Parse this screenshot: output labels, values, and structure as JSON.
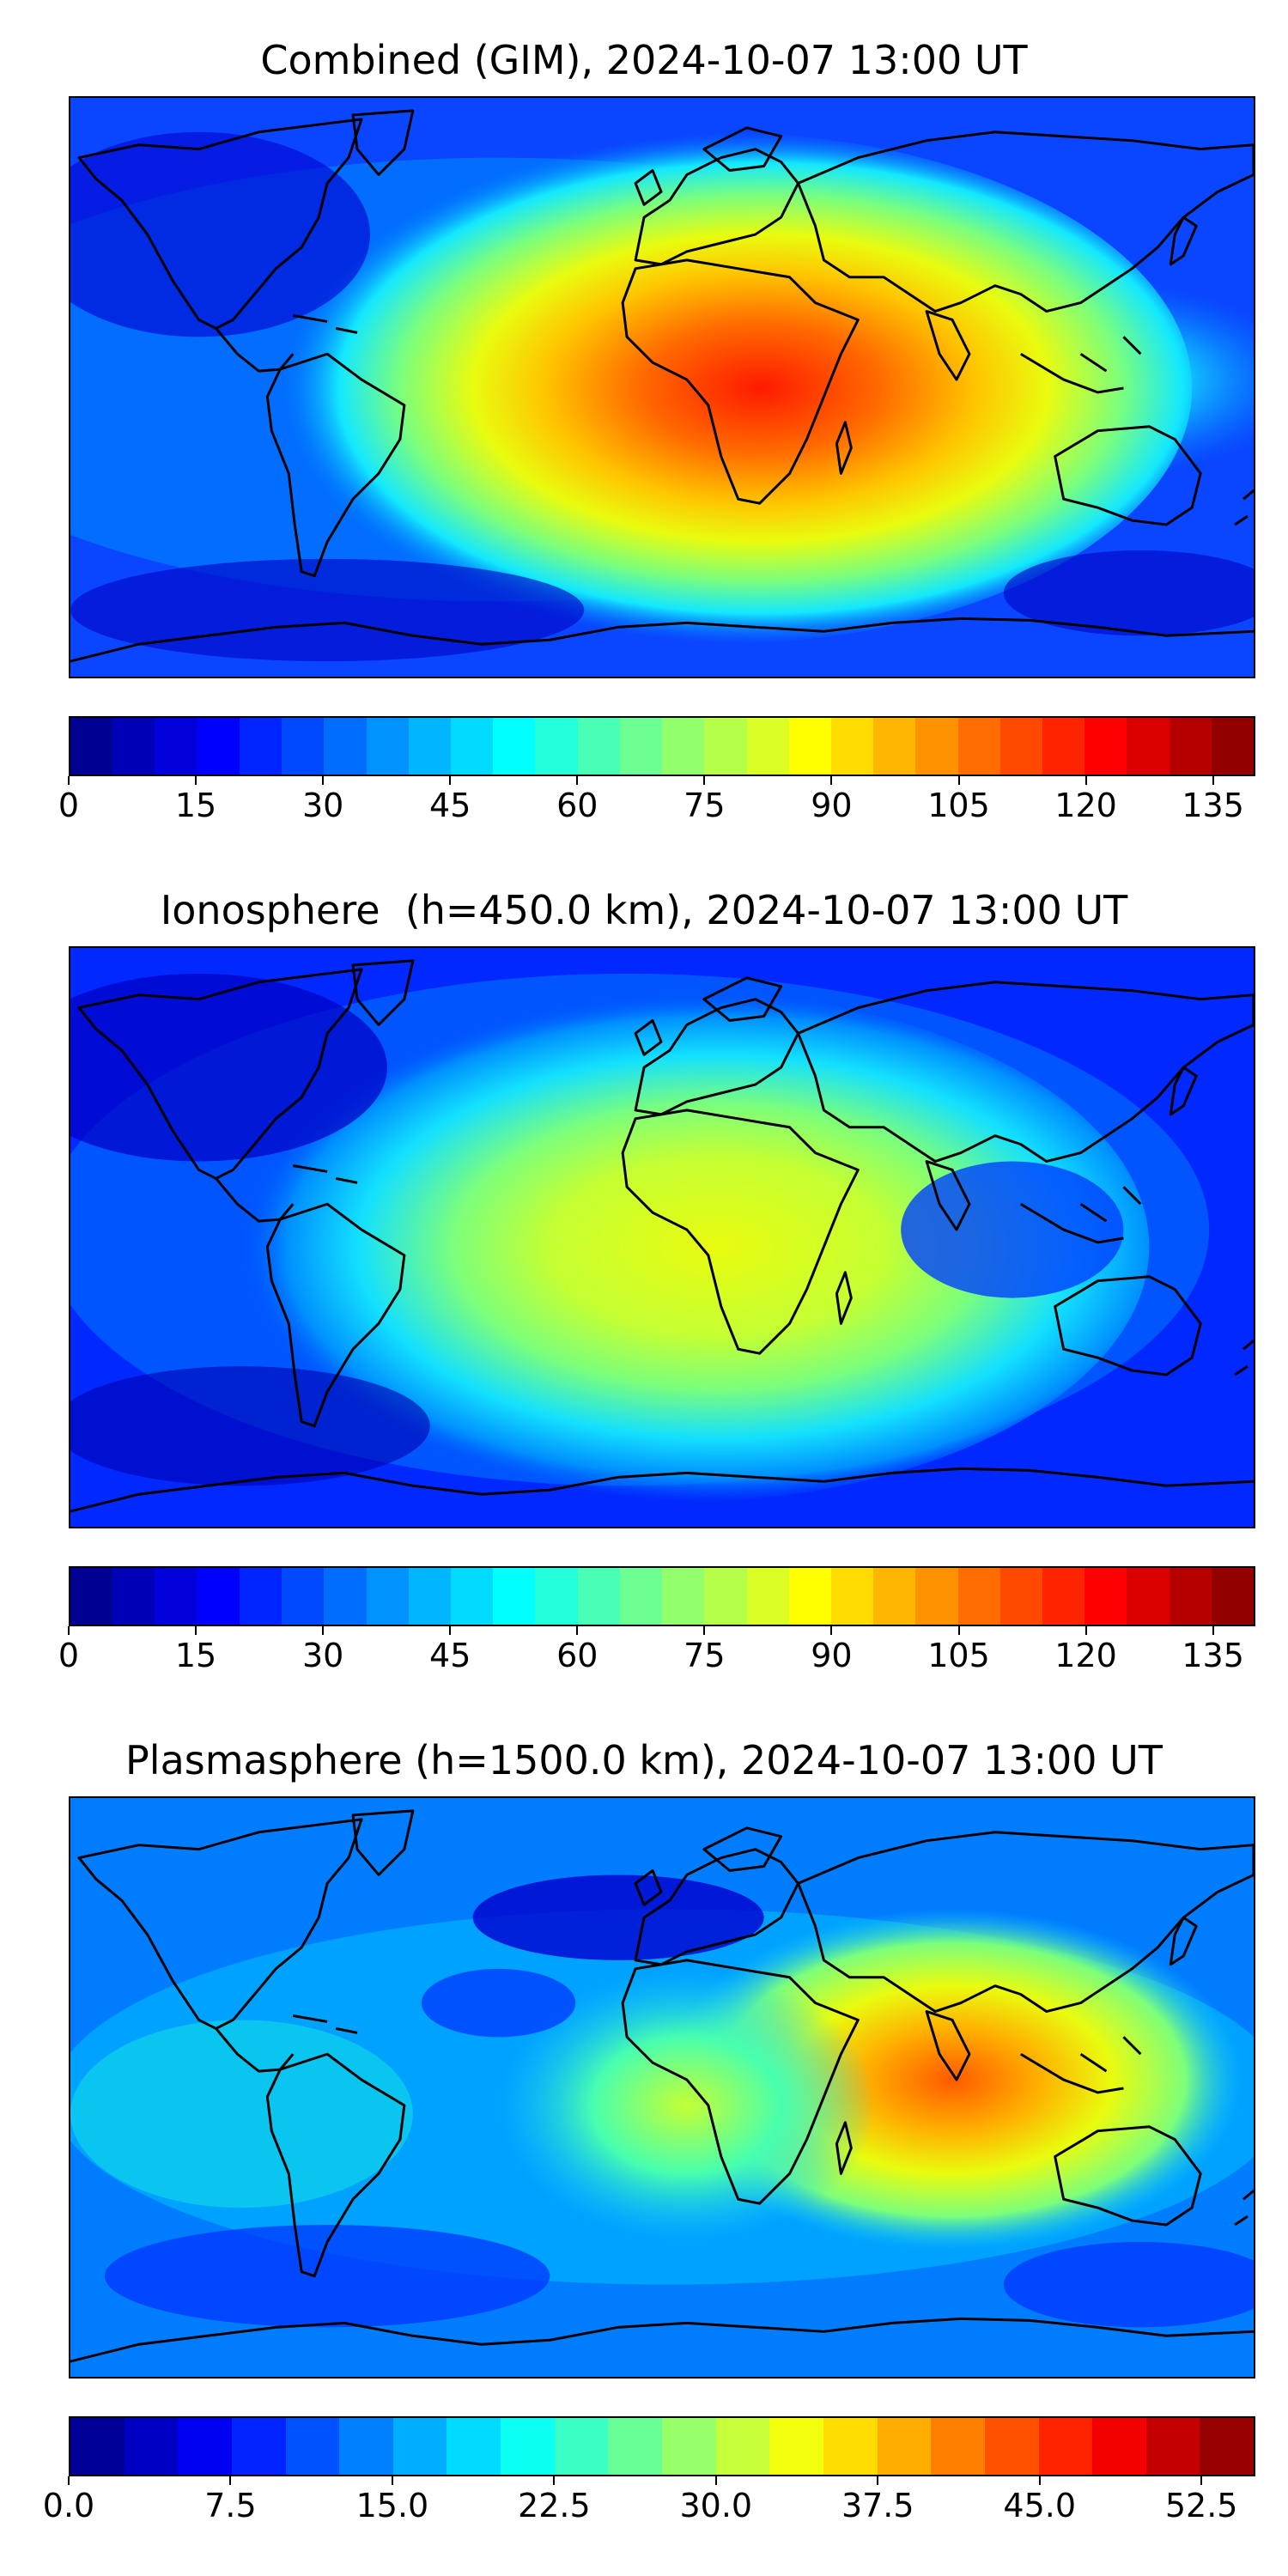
{
  "panels": [
    {
      "id": "combined",
      "title": "Combined (GIM), 2024-10-07 13:00 UT",
      "colorbar": {
        "min": 0,
        "max": 140,
        "ticks": [
          "0",
          "15",
          "30",
          "45",
          "60",
          "75",
          "90",
          "105",
          "120",
          "135"
        ],
        "tick_values": [
          0,
          15,
          30,
          45,
          60,
          75,
          90,
          105,
          120,
          135
        ],
        "levels": 28
      }
    },
    {
      "id": "ionosphere",
      "title": "Ionosphere  (h=450.0 km), 2024-10-07 13:00 UT",
      "colorbar": {
        "min": 0,
        "max": 140,
        "ticks": [
          "0",
          "15",
          "30",
          "45",
          "60",
          "75",
          "90",
          "105",
          "120",
          "135"
        ],
        "tick_values": [
          0,
          15,
          30,
          45,
          60,
          75,
          90,
          105,
          120,
          135
        ],
        "levels": 28
      }
    },
    {
      "id": "plasmasphere",
      "title": "Plasmasphere (h=1500.0 km), 2024-10-07 13:00 UT",
      "colorbar": {
        "min": 0,
        "max": 55,
        "ticks": [
          "0.0",
          "7.5",
          "15.0",
          "22.5",
          "30.0",
          "37.5",
          "45.0",
          "52.5"
        ],
        "tick_values": [
          0,
          7.5,
          15,
          22.5,
          30,
          37.5,
          45,
          52.5
        ],
        "levels": 22
      }
    }
  ],
  "colormap": "jet",
  "colormap_colors": [
    "#00007f",
    "#0000c4",
    "#0000ff",
    "#0040ff",
    "#007dff",
    "#00b9ff",
    "#13fce4",
    "#48ffae",
    "#7dff7a",
    "#b4ff43",
    "#e9fc0f",
    "#ffc500",
    "#ff8900",
    "#ff4e00",
    "#e41200",
    "#9e0000"
  ]
}
